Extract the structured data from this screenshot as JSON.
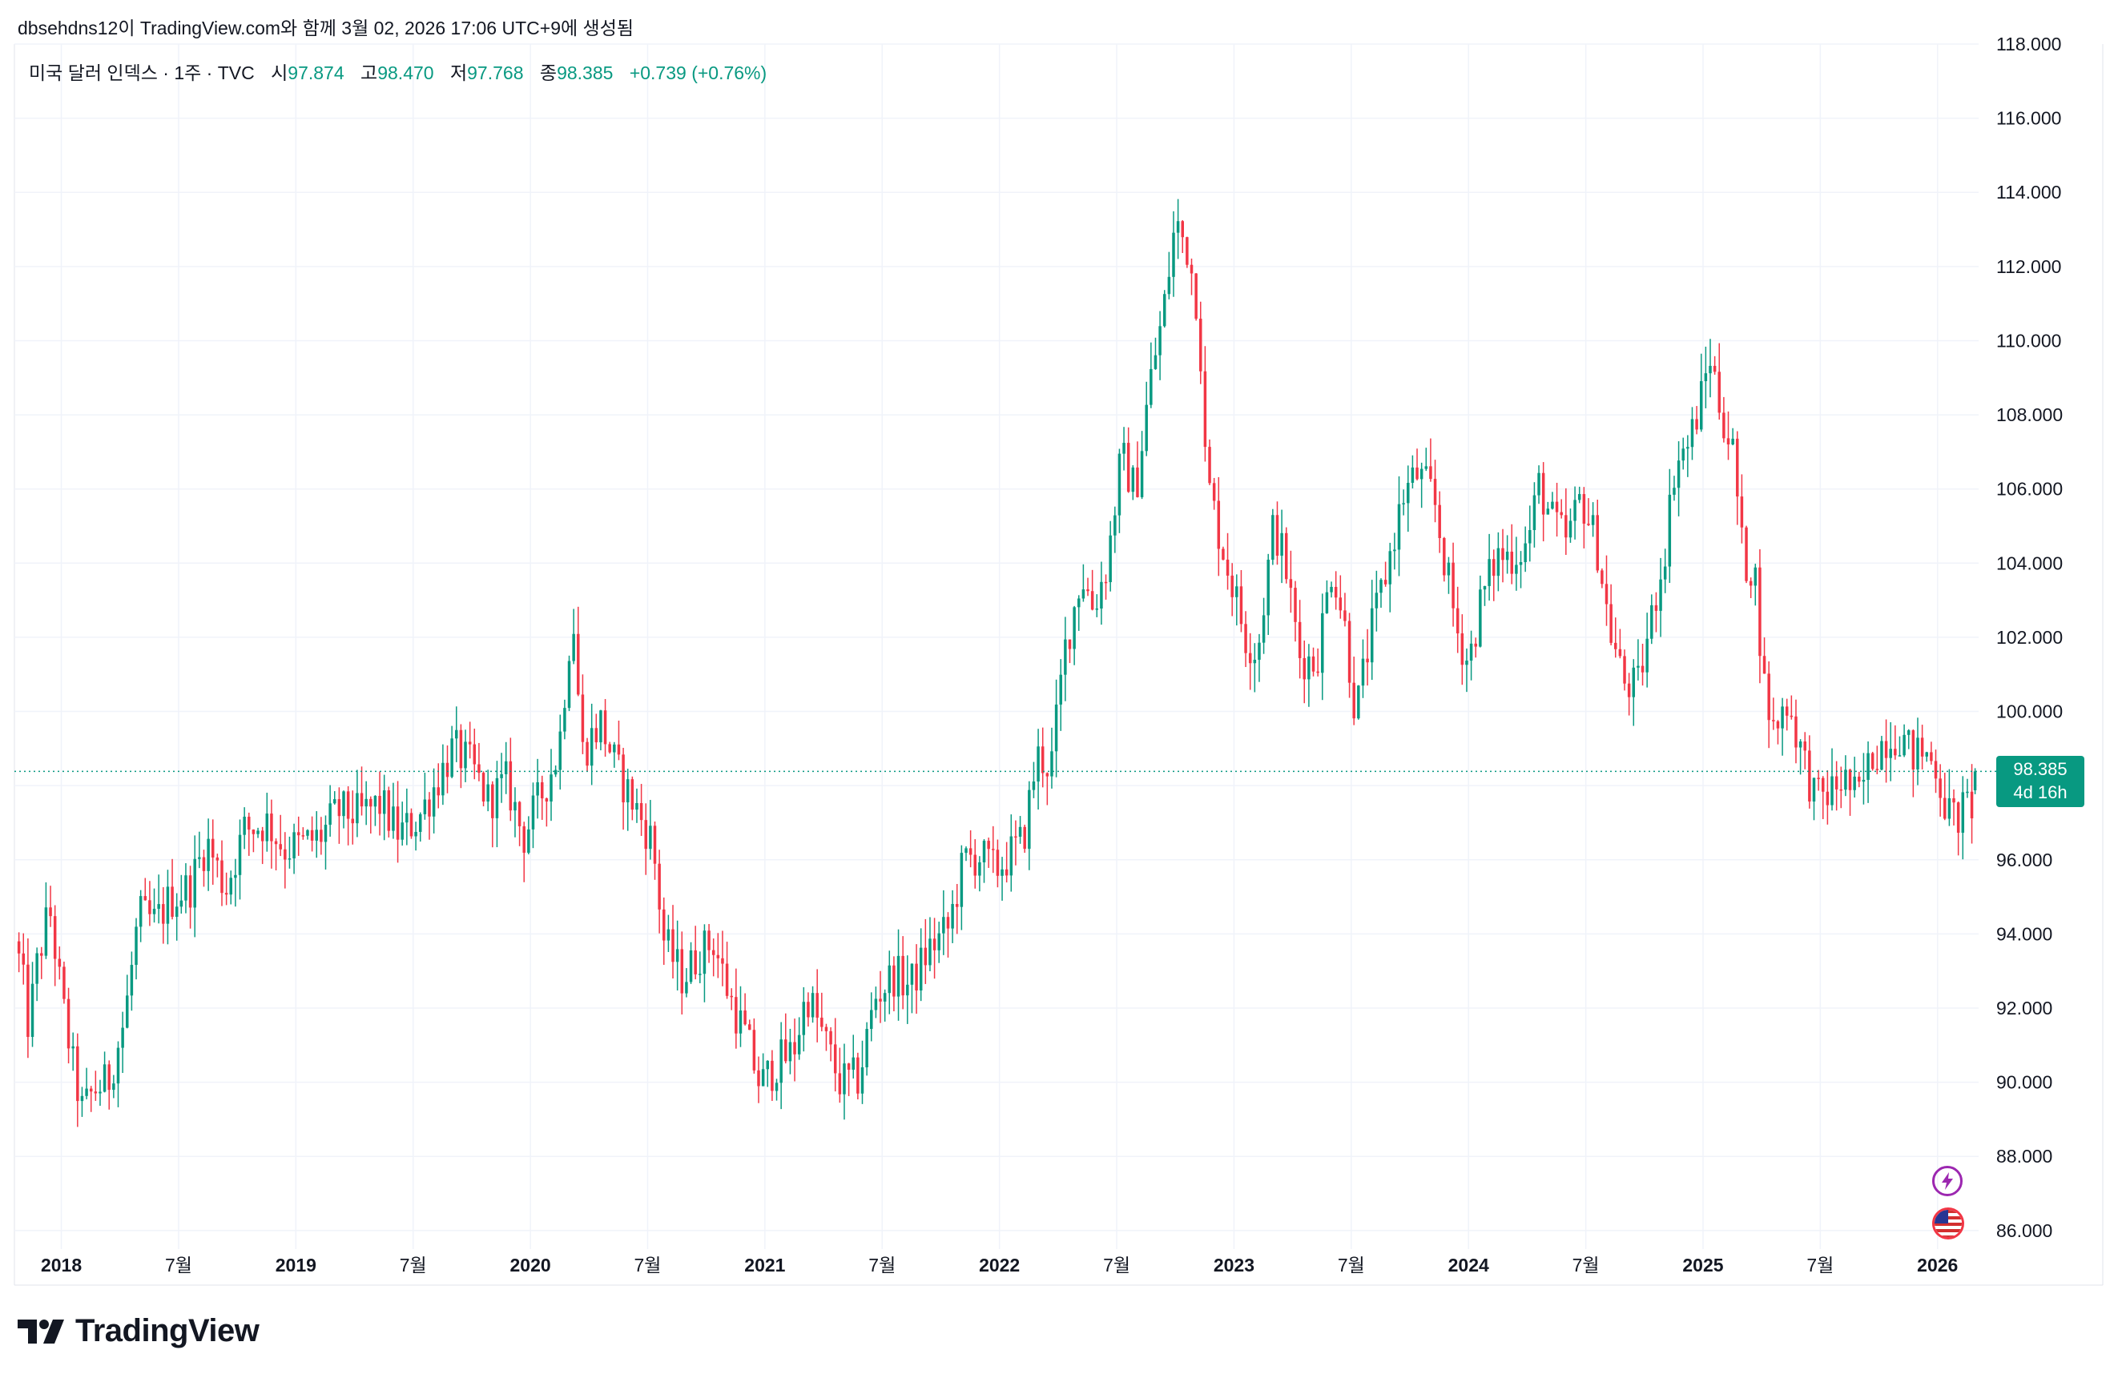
{
  "header": {
    "caption": "dbsehdns12이 TradingView.com와 함께 3월 02, 2026 17:06 UTC+9에 생성됨"
  },
  "legend": {
    "symbol": "미국 달러 인덱스 · 1주 · TVC",
    "open_label": "시",
    "open": "97.874",
    "high_label": "고",
    "high": "98.470",
    "low_label": "저",
    "low": "97.768",
    "close_label": "종",
    "close": "98.385",
    "change": "+0.739 (+0.76%)"
  },
  "price_badge": {
    "price": "98.385",
    "countdown": "4d 16h"
  },
  "colors": {
    "up": "#089981",
    "down": "#f23645",
    "grid": "#f0f3fa",
    "text": "#131722",
    "axis_text": "#131722"
  },
  "brand": {
    "name": "TradingView",
    "icon": "tradingview-logo-icon"
  },
  "icons": [
    "lightning-icon",
    "us-flag-icon"
  ],
  "chart_data": {
    "type": "candlestick",
    "title": "미국 달러 인덱스 · 1주 · TVC",
    "ylim": [
      85.5,
      118.0
    ],
    "y_ticks": [
      "86.000",
      "88.000",
      "90.000",
      "92.000",
      "94.000",
      "96.000",
      "98.000",
      "100.000",
      "102.000",
      "104.000",
      "106.000",
      "108.000",
      "110.000",
      "112.000",
      "114.000",
      "116.000",
      "118.000"
    ],
    "x_ticks": [
      {
        "t": 2018.0,
        "label": "2018",
        "bold": true
      },
      {
        "t": 2018.5,
        "label": "7월",
        "bold": false
      },
      {
        "t": 2019.0,
        "label": "2019",
        "bold": true
      },
      {
        "t": 2019.5,
        "label": "7월",
        "bold": false
      },
      {
        "t": 2020.0,
        "label": "2020",
        "bold": true
      },
      {
        "t": 2020.5,
        "label": "7월",
        "bold": false
      },
      {
        "t": 2021.0,
        "label": "2021",
        "bold": true
      },
      {
        "t": 2021.5,
        "label": "7월",
        "bold": false
      },
      {
        "t": 2022.0,
        "label": "2022",
        "bold": true
      },
      {
        "t": 2022.5,
        "label": "7월",
        "bold": false
      },
      {
        "t": 2023.0,
        "label": "2023",
        "bold": true
      },
      {
        "t": 2023.5,
        "label": "7월",
        "bold": false
      },
      {
        "t": 2024.0,
        "label": "2024",
        "bold": true
      },
      {
        "t": 2024.5,
        "label": "7월",
        "bold": false
      },
      {
        "t": 2025.0,
        "label": "2025",
        "bold": true
      },
      {
        "t": 2025.5,
        "label": "7월",
        "bold": false
      },
      {
        "t": 2026.0,
        "label": "2026",
        "bold": true
      }
    ],
    "x_range": [
      2017.8,
      2026.175
    ],
    "last_price": 98.385,
    "close_path": [
      [
        2017.8,
        93.8
      ],
      [
        2017.83,
        93.0
      ],
      [
        2017.86,
        91.5
      ],
      [
        2017.9,
        93.3
      ],
      [
        2017.95,
        94.7
      ],
      [
        2018.0,
        92.3
      ],
      [
        2018.05,
        90.4
      ],
      [
        2018.09,
        89.2
      ],
      [
        2018.14,
        89.8
      ],
      [
        2018.2,
        90.0
      ],
      [
        2018.27,
        91.7
      ],
      [
        2018.33,
        94.5
      ],
      [
        2018.4,
        94.3
      ],
      [
        2018.46,
        94.9
      ],
      [
        2018.55,
        95.3
      ],
      [
        2018.62,
        96.5
      ],
      [
        2018.7,
        95.2
      ],
      [
        2018.78,
        96.8
      ],
      [
        2018.88,
        97.0
      ],
      [
        2018.95,
        96.3
      ],
      [
        2019.02,
        96.4
      ],
      [
        2019.1,
        96.6
      ],
      [
        2019.18,
        97.3
      ],
      [
        2019.27,
        97.2
      ],
      [
        2019.36,
        97.5
      ],
      [
        2019.44,
        96.7
      ],
      [
        2019.52,
        97.1
      ],
      [
        2019.6,
        98.1
      ],
      [
        2019.67,
        99.0
      ],
      [
        2019.75,
        98.5
      ],
      [
        2019.82,
        97.6
      ],
      [
        2019.9,
        98.1
      ],
      [
        2019.97,
        96.6
      ],
      [
        2020.05,
        97.8
      ],
      [
        2020.12,
        98.9
      ],
      [
        2020.18,
        102.8
      ],
      [
        2020.22,
        98.9
      ],
      [
        2020.3,
        99.7
      ],
      [
        2020.37,
        98.4
      ],
      [
        2020.45,
        97.4
      ],
      [
        2020.52,
        96.5
      ],
      [
        2020.57,
        93.8
      ],
      [
        2020.65,
        92.8
      ],
      [
        2020.72,
        93.5
      ],
      [
        2020.78,
        93.8
      ],
      [
        2020.85,
        92.3
      ],
      [
        2020.92,
        91.2
      ],
      [
        2020.98,
        89.9
      ],
      [
        2021.05,
        90.5
      ],
      [
        2021.12,
        90.8
      ],
      [
        2021.18,
        92.4
      ],
      [
        2021.25,
        91.2
      ],
      [
        2021.32,
        90.0
      ],
      [
        2021.4,
        90.1
      ],
      [
        2021.47,
        92.3
      ],
      [
        2021.55,
        92.9
      ],
      [
        2021.62,
        92.6
      ],
      [
        2021.7,
        93.6
      ],
      [
        2021.78,
        94.1
      ],
      [
        2021.85,
        96.0
      ],
      [
        2021.92,
        96.1
      ],
      [
        2021.98,
        95.7
      ],
      [
        2022.04,
        96.1
      ],
      [
        2022.1,
        96.5
      ],
      [
        2022.16,
        98.8
      ],
      [
        2022.22,
        98.5
      ],
      [
        2022.28,
        101.7
      ],
      [
        2022.35,
        103.7
      ],
      [
        2022.4,
        102.8
      ],
      [
        2022.46,
        104.0
      ],
      [
        2022.52,
        106.9
      ],
      [
        2022.58,
        105.9
      ],
      [
        2022.64,
        108.8
      ],
      [
        2022.7,
        110.8
      ],
      [
        2022.75,
        113.2
      ],
      [
        2022.8,
        112.5
      ],
      [
        2022.85,
        110.8
      ],
      [
        2022.88,
        106.4
      ],
      [
        2022.94,
        104.7
      ],
      [
        2022.99,
        103.5
      ],
      [
        2023.05,
        102.0
      ],
      [
        2023.1,
        101.6
      ],
      [
        2023.17,
        105.1
      ],
      [
        2023.22,
        103.9
      ],
      [
        2023.28,
        101.5
      ],
      [
        2023.35,
        101.3
      ],
      [
        2023.42,
        104.0
      ],
      [
        2023.47,
        102.4
      ],
      [
        2023.52,
        99.9
      ],
      [
        2023.58,
        102.0
      ],
      [
        2023.65,
        103.8
      ],
      [
        2023.72,
        105.8
      ],
      [
        2023.78,
        106.4
      ],
      [
        2023.85,
        105.8
      ],
      [
        2023.9,
        104.0
      ],
      [
        2023.95,
        102.2
      ],
      [
        2024.0,
        101.3
      ],
      [
        2024.05,
        102.9
      ],
      [
        2024.12,
        104.2
      ],
      [
        2024.18,
        104.2
      ],
      [
        2024.25,
        104.5
      ],
      [
        2024.3,
        106.1
      ],
      [
        2024.36,
        105.1
      ],
      [
        2024.42,
        104.6
      ],
      [
        2024.48,
        105.8
      ],
      [
        2024.55,
        104.4
      ],
      [
        2024.6,
        102.3
      ],
      [
        2024.66,
        100.8
      ],
      [
        2024.72,
        100.6
      ],
      [
        2024.78,
        102.5
      ],
      [
        2024.84,
        104.5
      ],
      [
        2024.88,
        106.7
      ],
      [
        2024.94,
        107.2
      ],
      [
        2024.99,
        108.4
      ],
      [
        2025.03,
        109.6
      ],
      [
        2025.07,
        108.3
      ],
      [
        2025.13,
        106.9
      ],
      [
        2025.17,
        104.1
      ],
      [
        2025.22,
        103.8
      ],
      [
        2025.26,
        100.7
      ],
      [
        2025.3,
        99.5
      ],
      [
        2025.36,
        100.3
      ],
      [
        2025.42,
        98.9
      ],
      [
        2025.48,
        97.6
      ],
      [
        2025.54,
        97.8
      ],
      [
        2025.6,
        98.2
      ],
      [
        2025.66,
        97.6
      ],
      [
        2025.72,
        98.8
      ],
      [
        2025.78,
        99.3
      ],
      [
        2025.84,
        99.4
      ],
      [
        2025.89,
        98.8
      ],
      [
        2025.94,
        98.9
      ],
      [
        2025.99,
        98.6
      ],
      [
        2026.04,
        97.3
      ],
      [
        2026.08,
        97.1
      ],
      [
        2026.12,
        97.4
      ],
      [
        2026.16,
        97.6
      ]
    ],
    "last_candle": {
      "open": 97.874,
      "high": 98.47,
      "low": 97.768,
      "close": 98.385
    }
  }
}
